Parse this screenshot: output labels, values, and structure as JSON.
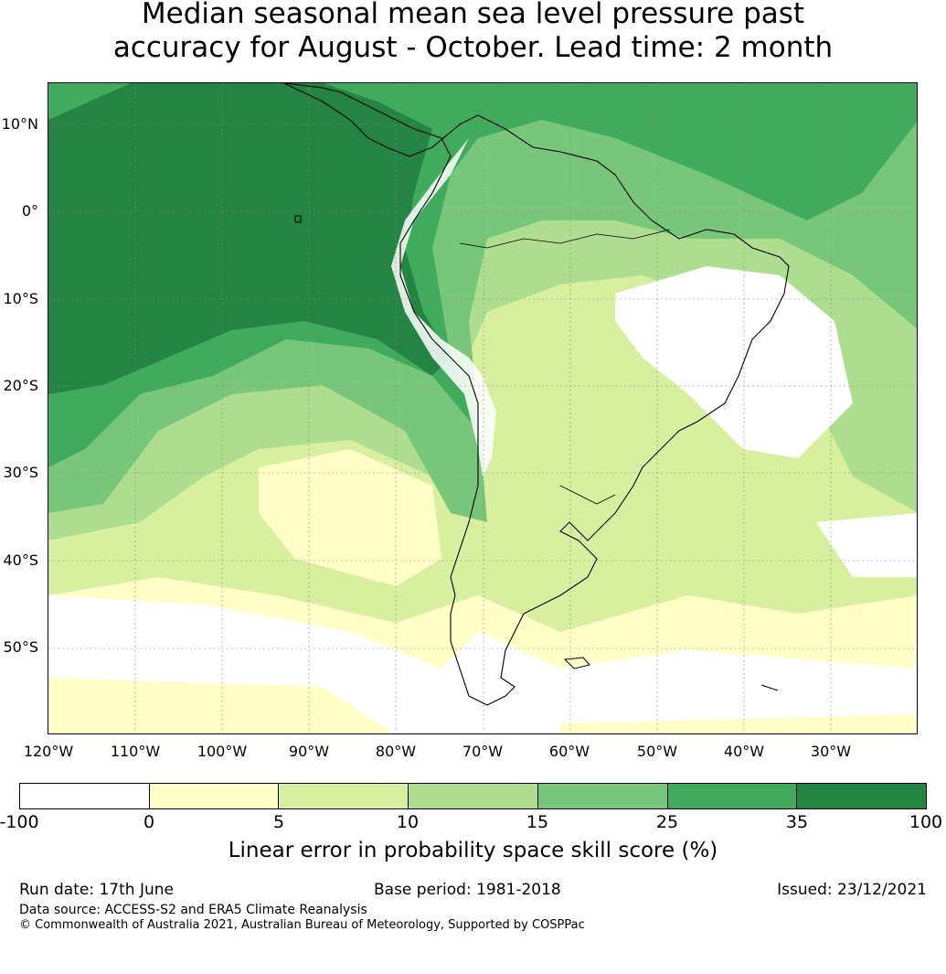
{
  "title": {
    "line1": "Median seasonal mean sea level pressure past",
    "line2": "accuracy for August - October. Lead time: 2 month"
  },
  "map": {
    "lat_labels": [
      "10°N",
      "0°",
      "10°S",
      "20°S",
      "30°S",
      "40°S",
      "50°S"
    ],
    "lon_labels": [
      "120°W",
      "110°W",
      "100°W",
      "90°W",
      "80°W",
      "70°W",
      "60°W",
      "50°W",
      "40°W",
      "30°W"
    ]
  },
  "colorbar": {
    "ticks": [
      "-100",
      "0",
      "5",
      "10",
      "15",
      "25",
      "35",
      "100"
    ],
    "colors": [
      "#ffffff",
      "#ffffc7",
      "#d9efa0",
      "#addd8e",
      "#78c679",
      "#41ab5d",
      "#238443"
    ],
    "label": "Linear error in probability space skill score (%)"
  },
  "footer": {
    "run_date": "Run date: 17th June",
    "base_period": "Base period: 1981-2018",
    "issued": "Issued: 23/12/2021",
    "data_source": "Data source: ACCESS-S2 and ERA5 Climate Reanalysis",
    "copyright": "© Commonwealth of Australia 2021, Australian Bureau of Meteorology, Supported by COSPPac"
  }
}
